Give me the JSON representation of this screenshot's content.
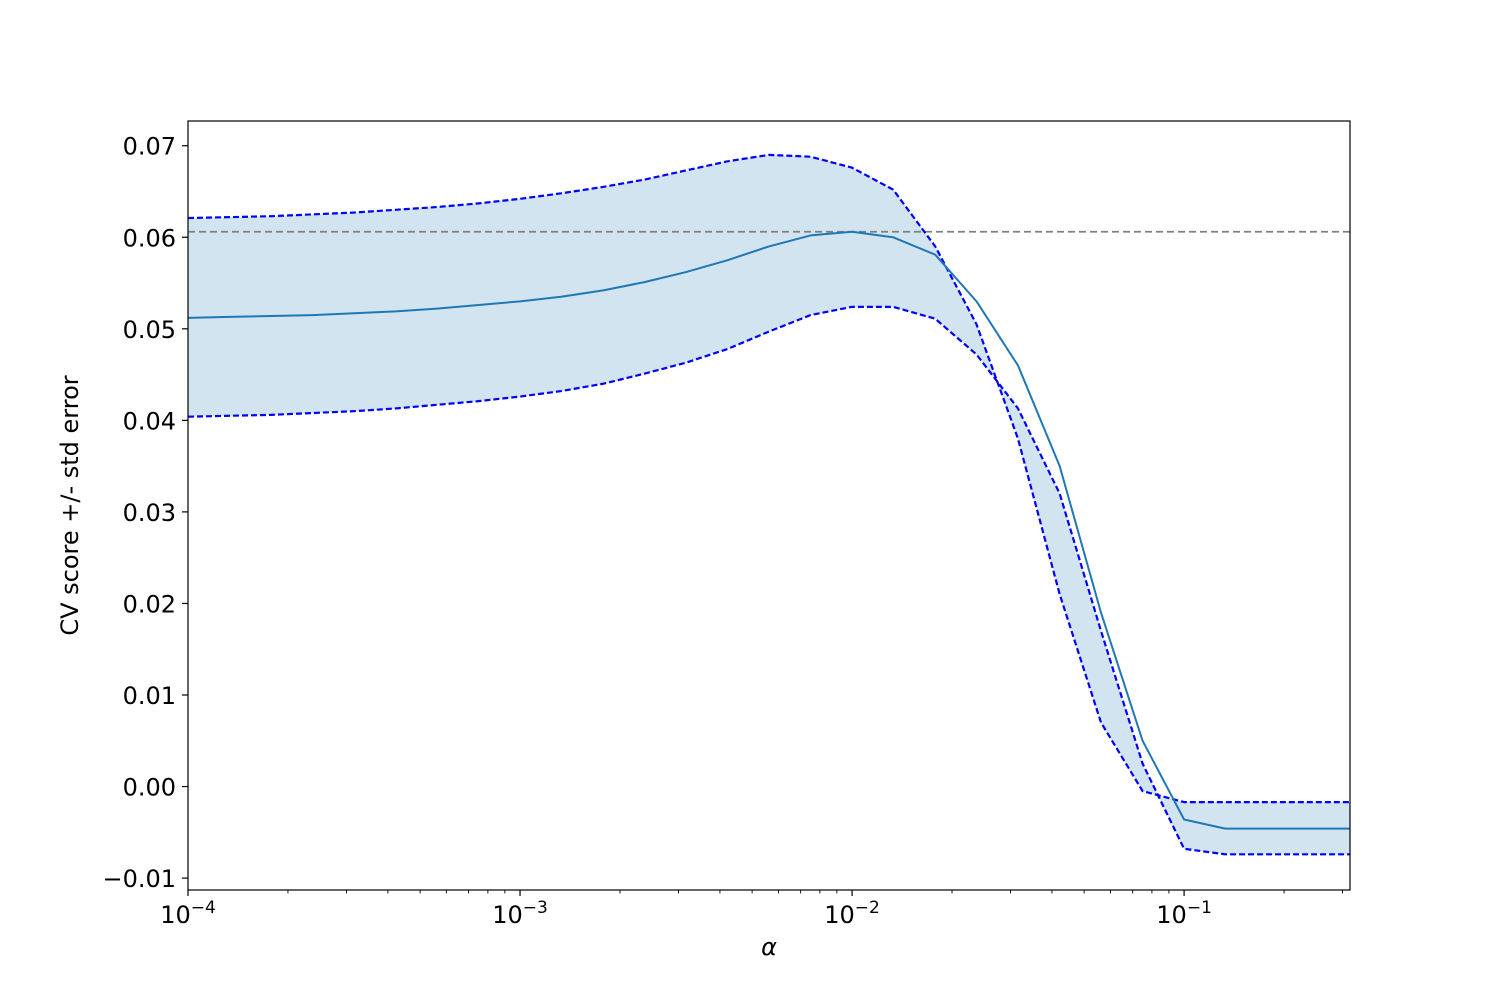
{
  "chart_data": {
    "type": "line",
    "title": "",
    "xlabel": "α",
    "ylabel": "CV score +/- std error",
    "xscale": "log",
    "xlim": [
      0.0001,
      0.316
    ],
    "ylim": [
      -0.0113,
      0.0727
    ],
    "grid": false,
    "legend": "none",
    "x": [
      0.0001,
      0.000133,
      0.000178,
      0.000237,
      0.000316,
      0.000422,
      0.000562,
      0.00075,
      0.001,
      0.00133,
      0.00178,
      0.00237,
      0.00316,
      0.00422,
      0.00562,
      0.0075,
      0.01,
      0.0133,
      0.0178,
      0.0237,
      0.0316,
      0.0422,
      0.0562,
      0.075,
      0.1,
      0.133,
      0.178,
      0.237,
      0.316
    ],
    "series": [
      {
        "role": "mean",
        "color": "#1f77b4",
        "style": "solid",
        "values": [
          0.0512,
          0.0513,
          0.0514,
          0.0515,
          0.0517,
          0.0519,
          0.0522,
          0.0526,
          0.053,
          0.0535,
          0.0542,
          0.0551,
          0.0562,
          0.0575,
          0.059,
          0.0602,
          0.0606,
          0.06,
          0.0581,
          0.053,
          0.046,
          0.035,
          0.019,
          0.005,
          -0.0036,
          -0.0046,
          -0.0046,
          -0.0046,
          -0.0046
        ]
      },
      {
        "role": "upper",
        "color": "#0000ff",
        "style": "dashed",
        "values": [
          0.0621,
          0.0622,
          0.0623,
          0.0625,
          0.0627,
          0.063,
          0.0633,
          0.0637,
          0.0642,
          0.0648,
          0.0655,
          0.0663,
          0.0673,
          0.0683,
          0.069,
          0.0688,
          0.0676,
          0.0652,
          0.059,
          0.0505,
          0.038,
          0.021,
          0.007,
          -0.0005,
          -0.0017,
          -0.0017,
          -0.0017,
          -0.0017,
          -0.0017
        ]
      },
      {
        "role": "lower",
        "color": "#0000ff",
        "style": "dashed",
        "values": [
          0.0404,
          0.0405,
          0.0406,
          0.0408,
          0.041,
          0.0413,
          0.0417,
          0.0421,
          0.0426,
          0.0432,
          0.044,
          0.0451,
          0.0463,
          0.0478,
          0.0497,
          0.0515,
          0.0524,
          0.0524,
          0.0511,
          0.0472,
          0.0413,
          0.032,
          0.017,
          0.0025,
          -0.0068,
          -0.0074,
          -0.0074,
          -0.0074,
          -0.0074
        ]
      }
    ],
    "band": {
      "between": [
        "lower",
        "upper"
      ],
      "color": "#1f77b4",
      "opacity": 0.2
    },
    "hline": {
      "y": 0.0606,
      "color": "#808080",
      "style": "dashed"
    },
    "yticks": [
      {
        "value": 0.07,
        "label": "0.07"
      },
      {
        "value": 0.06,
        "label": "0.06"
      },
      {
        "value": 0.05,
        "label": "0.05"
      },
      {
        "value": 0.04,
        "label": "0.04"
      },
      {
        "value": 0.03,
        "label": "0.03"
      },
      {
        "value": 0.02,
        "label": "0.02"
      },
      {
        "value": 0.01,
        "label": "0.01"
      },
      {
        "value": 0.0,
        "label": "0.00"
      },
      {
        "value": -0.01,
        "label": "−0.01"
      }
    ],
    "xticks": [
      {
        "value": 0.0001,
        "base": "10",
        "exp": "−4"
      },
      {
        "value": 0.001,
        "base": "10",
        "exp": "−3"
      },
      {
        "value": 0.01,
        "base": "10",
        "exp": "−2"
      },
      {
        "value": 0.1,
        "base": "10",
        "exp": "−1"
      }
    ]
  }
}
